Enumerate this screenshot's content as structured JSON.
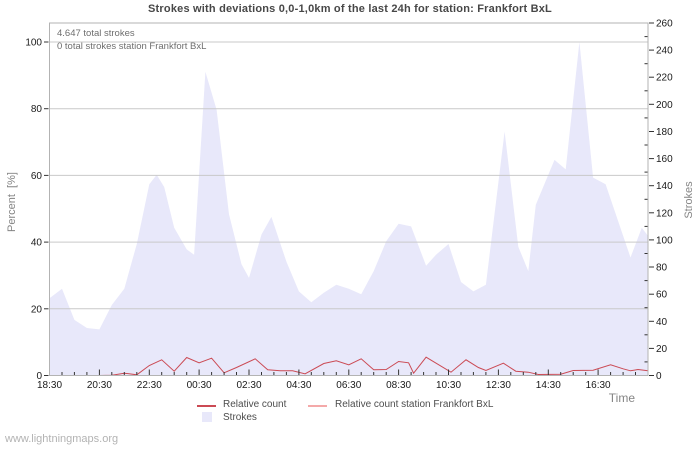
{
  "chart_data": {
    "type": "area+line",
    "title": "Strokes with deviations 0,0-1,0km of the last 24h for station: Frankfort BxL",
    "xlabel": "Time",
    "ylabel_left": "Percent  [%]",
    "ylabel_right": "Strokes",
    "annotations": [
      "4.647 total strokes",
      "0 total strokes station Frankfort BxL"
    ],
    "x_start": "18:30",
    "x_span_hours": 24,
    "x_minor_step_hours": 0.5,
    "x_tick_hours": [
      0,
      2,
      4,
      6,
      8,
      10,
      12,
      14,
      16,
      18,
      20,
      22
    ],
    "x_tick_labels": [
      "18:30",
      "20:30",
      "22:30",
      "00:30",
      "02:30",
      "04:30",
      "06:30",
      "08:30",
      "10:30",
      "12:30",
      "14:30",
      "16:30"
    ],
    "y_left": {
      "range": [
        0,
        100
      ],
      "ticks": [
        0,
        20,
        40,
        60,
        80,
        100
      ],
      "gridlines": [
        20,
        40,
        60,
        80,
        100
      ],
      "percent_to_strokes": 2.46
    },
    "y_right": {
      "range": [
        0,
        260
      ],
      "ticks": [
        0,
        20,
        40,
        60,
        80,
        100,
        120,
        140,
        160,
        180,
        200,
        220,
        240,
        260
      ],
      "minor_step": 10
    },
    "grid": true,
    "legend_position": "bottom",
    "series": [
      {
        "name": "Strokes",
        "kind": "area",
        "axis": "right",
        "fill": "#e8e8fa",
        "x_unit": "hours_since_18:30",
        "points": [
          [
            0,
            57
          ],
          [
            0.5,
            64
          ],
          [
            1,
            41
          ],
          [
            1.5,
            35
          ],
          [
            2,
            34
          ],
          [
            2.5,
            52
          ],
          [
            3,
            64
          ],
          [
            3.5,
            97
          ],
          [
            4,
            141
          ],
          [
            4.3,
            148
          ],
          [
            4.6,
            139
          ],
          [
            5,
            109
          ],
          [
            5.5,
            93
          ],
          [
            5.8,
            89
          ],
          [
            6.25,
            224
          ],
          [
            6.7,
            196
          ],
          [
            7.2,
            119
          ],
          [
            7.7,
            82
          ],
          [
            8,
            72
          ],
          [
            8.5,
            104
          ],
          [
            8.9,
            117
          ],
          [
            9.5,
            84
          ],
          [
            10,
            62
          ],
          [
            10.5,
            54
          ],
          [
            11,
            61
          ],
          [
            11.5,
            67
          ],
          [
            12,
            64
          ],
          [
            12.5,
            60
          ],
          [
            13,
            77
          ],
          [
            13.5,
            99
          ],
          [
            14,
            112
          ],
          [
            14.5,
            110
          ],
          [
            15.1,
            81
          ],
          [
            15.5,
            89
          ],
          [
            16,
            97
          ],
          [
            16.5,
            69
          ],
          [
            17,
            62
          ],
          [
            17.5,
            67
          ],
          [
            18.25,
            180
          ],
          [
            18.8,
            95
          ],
          [
            19.2,
            77
          ],
          [
            19.5,
            126
          ],
          [
            20.25,
            159
          ],
          [
            20.7,
            152
          ],
          [
            21.25,
            246
          ],
          [
            21.8,
            146
          ],
          [
            22.3,
            141
          ],
          [
            23.3,
            87
          ],
          [
            23.75,
            109
          ],
          [
            24,
            103
          ]
        ]
      },
      {
        "name": "Relative count station Frankfort BxL",
        "kind": "line",
        "axis": "left",
        "color": "#f4a9a9",
        "x_unit": "hours_since_18:30",
        "points": [
          [
            0,
            0
          ],
          [
            24,
            0
          ]
        ]
      },
      {
        "name": "Relative count",
        "kind": "line",
        "axis": "left",
        "color": "#cb4a54",
        "x_unit": "hours_since_18:30",
        "points": [
          [
            0,
            0
          ],
          [
            0.5,
            0
          ],
          [
            1,
            0
          ],
          [
            1.5,
            0
          ],
          [
            2,
            0
          ],
          [
            2.5,
            0.1
          ],
          [
            3,
            0.7
          ],
          [
            3.5,
            0.2
          ],
          [
            4,
            3
          ],
          [
            4.5,
            4.7
          ],
          [
            5,
            1.3
          ],
          [
            5.5,
            5.4
          ],
          [
            6,
            3.8
          ],
          [
            6.5,
            5.2
          ],
          [
            7,
            0.8
          ],
          [
            7.5,
            2.4
          ],
          [
            8.25,
            5
          ],
          [
            8.75,
            1.7
          ],
          [
            9.25,
            1.4
          ],
          [
            9.75,
            1.4
          ],
          [
            10.25,
            0.5
          ],
          [
            11,
            3.6
          ],
          [
            11.5,
            4.4
          ],
          [
            12,
            3.2
          ],
          [
            12.5,
            5
          ],
          [
            13,
            1.7
          ],
          [
            13.5,
            1.8
          ],
          [
            14,
            4.2
          ],
          [
            14.4,
            3.8
          ],
          [
            14.6,
            0.7
          ],
          [
            15.1,
            5.5
          ],
          [
            16.1,
            1
          ],
          [
            16.7,
            4.7
          ],
          [
            17.2,
            2.4
          ],
          [
            17.5,
            1.5
          ],
          [
            18.2,
            3.7
          ],
          [
            18.7,
            1.3
          ],
          [
            19.2,
            1
          ],
          [
            19.6,
            0.3
          ],
          [
            20.5,
            0.4
          ],
          [
            21,
            1.5
          ],
          [
            21.8,
            1.6
          ],
          [
            22.5,
            3.2
          ],
          [
            23,
            2
          ],
          [
            23.3,
            1.4
          ],
          [
            23.6,
            1.8
          ],
          [
            24,
            1.4
          ]
        ]
      }
    ]
  },
  "legend": {
    "items": [
      {
        "label": "Relative count",
        "swatch": "line",
        "color": "#cb4a54"
      },
      {
        "label": "Relative count station Frankfort BxL",
        "swatch": "line",
        "color": "#f4a9a9"
      },
      {
        "label": "Strokes",
        "swatch": "area",
        "color": "#e8e8fa"
      }
    ]
  },
  "watermark": "www.lightningmaps.org",
  "colors": {
    "grid": "#c9c9c9",
    "plot_border": "#b3b3b3",
    "tick": "#333333",
    "tick_label": "#1a1a1a"
  }
}
